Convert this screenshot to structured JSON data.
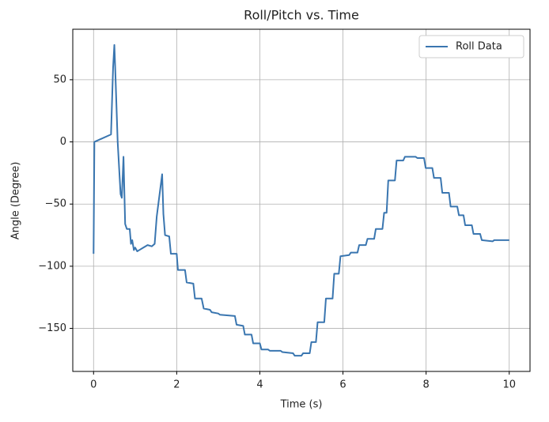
{
  "chart_data": {
    "type": "line",
    "title": "Roll/Pitch vs. Time",
    "x_label": "Time (s)",
    "y_label": "Angle (Degree)",
    "x": [
      0,
      0.02,
      0.42,
      0.47,
      0.5,
      0.52,
      0.58,
      0.65,
      0.68,
      0.72,
      0.76,
      0.8,
      0.87,
      0.9,
      0.93,
      0.97,
      1.0,
      1.05,
      1.1,
      1.2,
      1.3,
      1.4,
      1.47,
      1.52,
      1.65,
      1.68,
      1.72,
      1.82,
      1.86,
      2.0,
      2.03,
      2.2,
      2.24,
      2.4,
      2.44,
      2.6,
      2.65,
      2.8,
      2.84,
      3.0,
      3.04,
      3.4,
      3.44,
      3.6,
      3.64,
      3.8,
      3.84,
      4.0,
      4.04,
      4.2,
      4.24,
      4.5,
      4.54,
      4.8,
      4.84,
      5.0,
      5.04,
      5.2,
      5.24,
      5.35,
      5.39,
      5.55,
      5.59,
      5.75,
      5.79,
      5.9,
      5.94,
      6.15,
      6.19,
      6.35,
      6.39,
      6.55,
      6.59,
      6.75,
      6.79,
      6.95,
      6.99,
      7.05,
      7.09,
      7.25,
      7.29,
      7.45,
      7.49,
      7.75,
      7.79,
      7.95,
      7.99,
      8.15,
      8.19,
      8.35,
      8.39,
      8.55,
      8.59,
      8.75,
      8.79,
      8.9,
      8.94,
      9.1,
      9.14,
      9.3,
      9.34,
      9.6,
      9.64,
      10
    ],
    "series": [
      {
        "name": "Roll Data",
        "color": "#3a76b0",
        "values": [
          -90,
          0,
          6,
          60,
          78,
          60,
          0,
          -42,
          -45,
          -12,
          -66,
          -70,
          -70,
          -82,
          -79,
          -87,
          -85,
          -88,
          -87,
          -85,
          -83,
          -84,
          -82,
          -60,
          -26,
          -58,
          -75,
          -76,
          -90,
          -90,
          -103,
          -103,
          -113,
          -114,
          -126,
          -126,
          -134,
          -135,
          -137,
          -138,
          -139,
          -140,
          -147,
          -148,
          -155,
          -155,
          -162,
          -162,
          -167,
          -167,
          -168,
          -168,
          -169,
          -170,
          -172,
          -172,
          -170,
          -170,
          -161,
          -161,
          -145,
          -145,
          -126,
          -126,
          -106,
          -106,
          -92,
          -91,
          -89,
          -89,
          -83,
          -83,
          -78,
          -78,
          -70,
          -70,
          -57,
          -57,
          -31,
          -31,
          -15,
          -15,
          -12,
          -12,
          -13,
          -13,
          -21,
          -21,
          -29,
          -29,
          -41,
          -41,
          -52,
          -52,
          -59,
          -59,
          -67,
          -67,
          -74,
          -74,
          -79,
          -80,
          -79,
          -79
        ]
      }
    ],
    "xlim": [
      -0.5,
      10.5
    ],
    "ylim": [
      -184.6,
      90.6
    ],
    "xticks": [
      0,
      2,
      4,
      6,
      8,
      10
    ],
    "yticks": [
      {
        "value": -150,
        "label": "−150"
      },
      {
        "value": -100,
        "label": "−100"
      },
      {
        "value": -50,
        "label": "−50"
      },
      0,
      50
    ],
    "grid": true,
    "legend": "upper-right"
  }
}
